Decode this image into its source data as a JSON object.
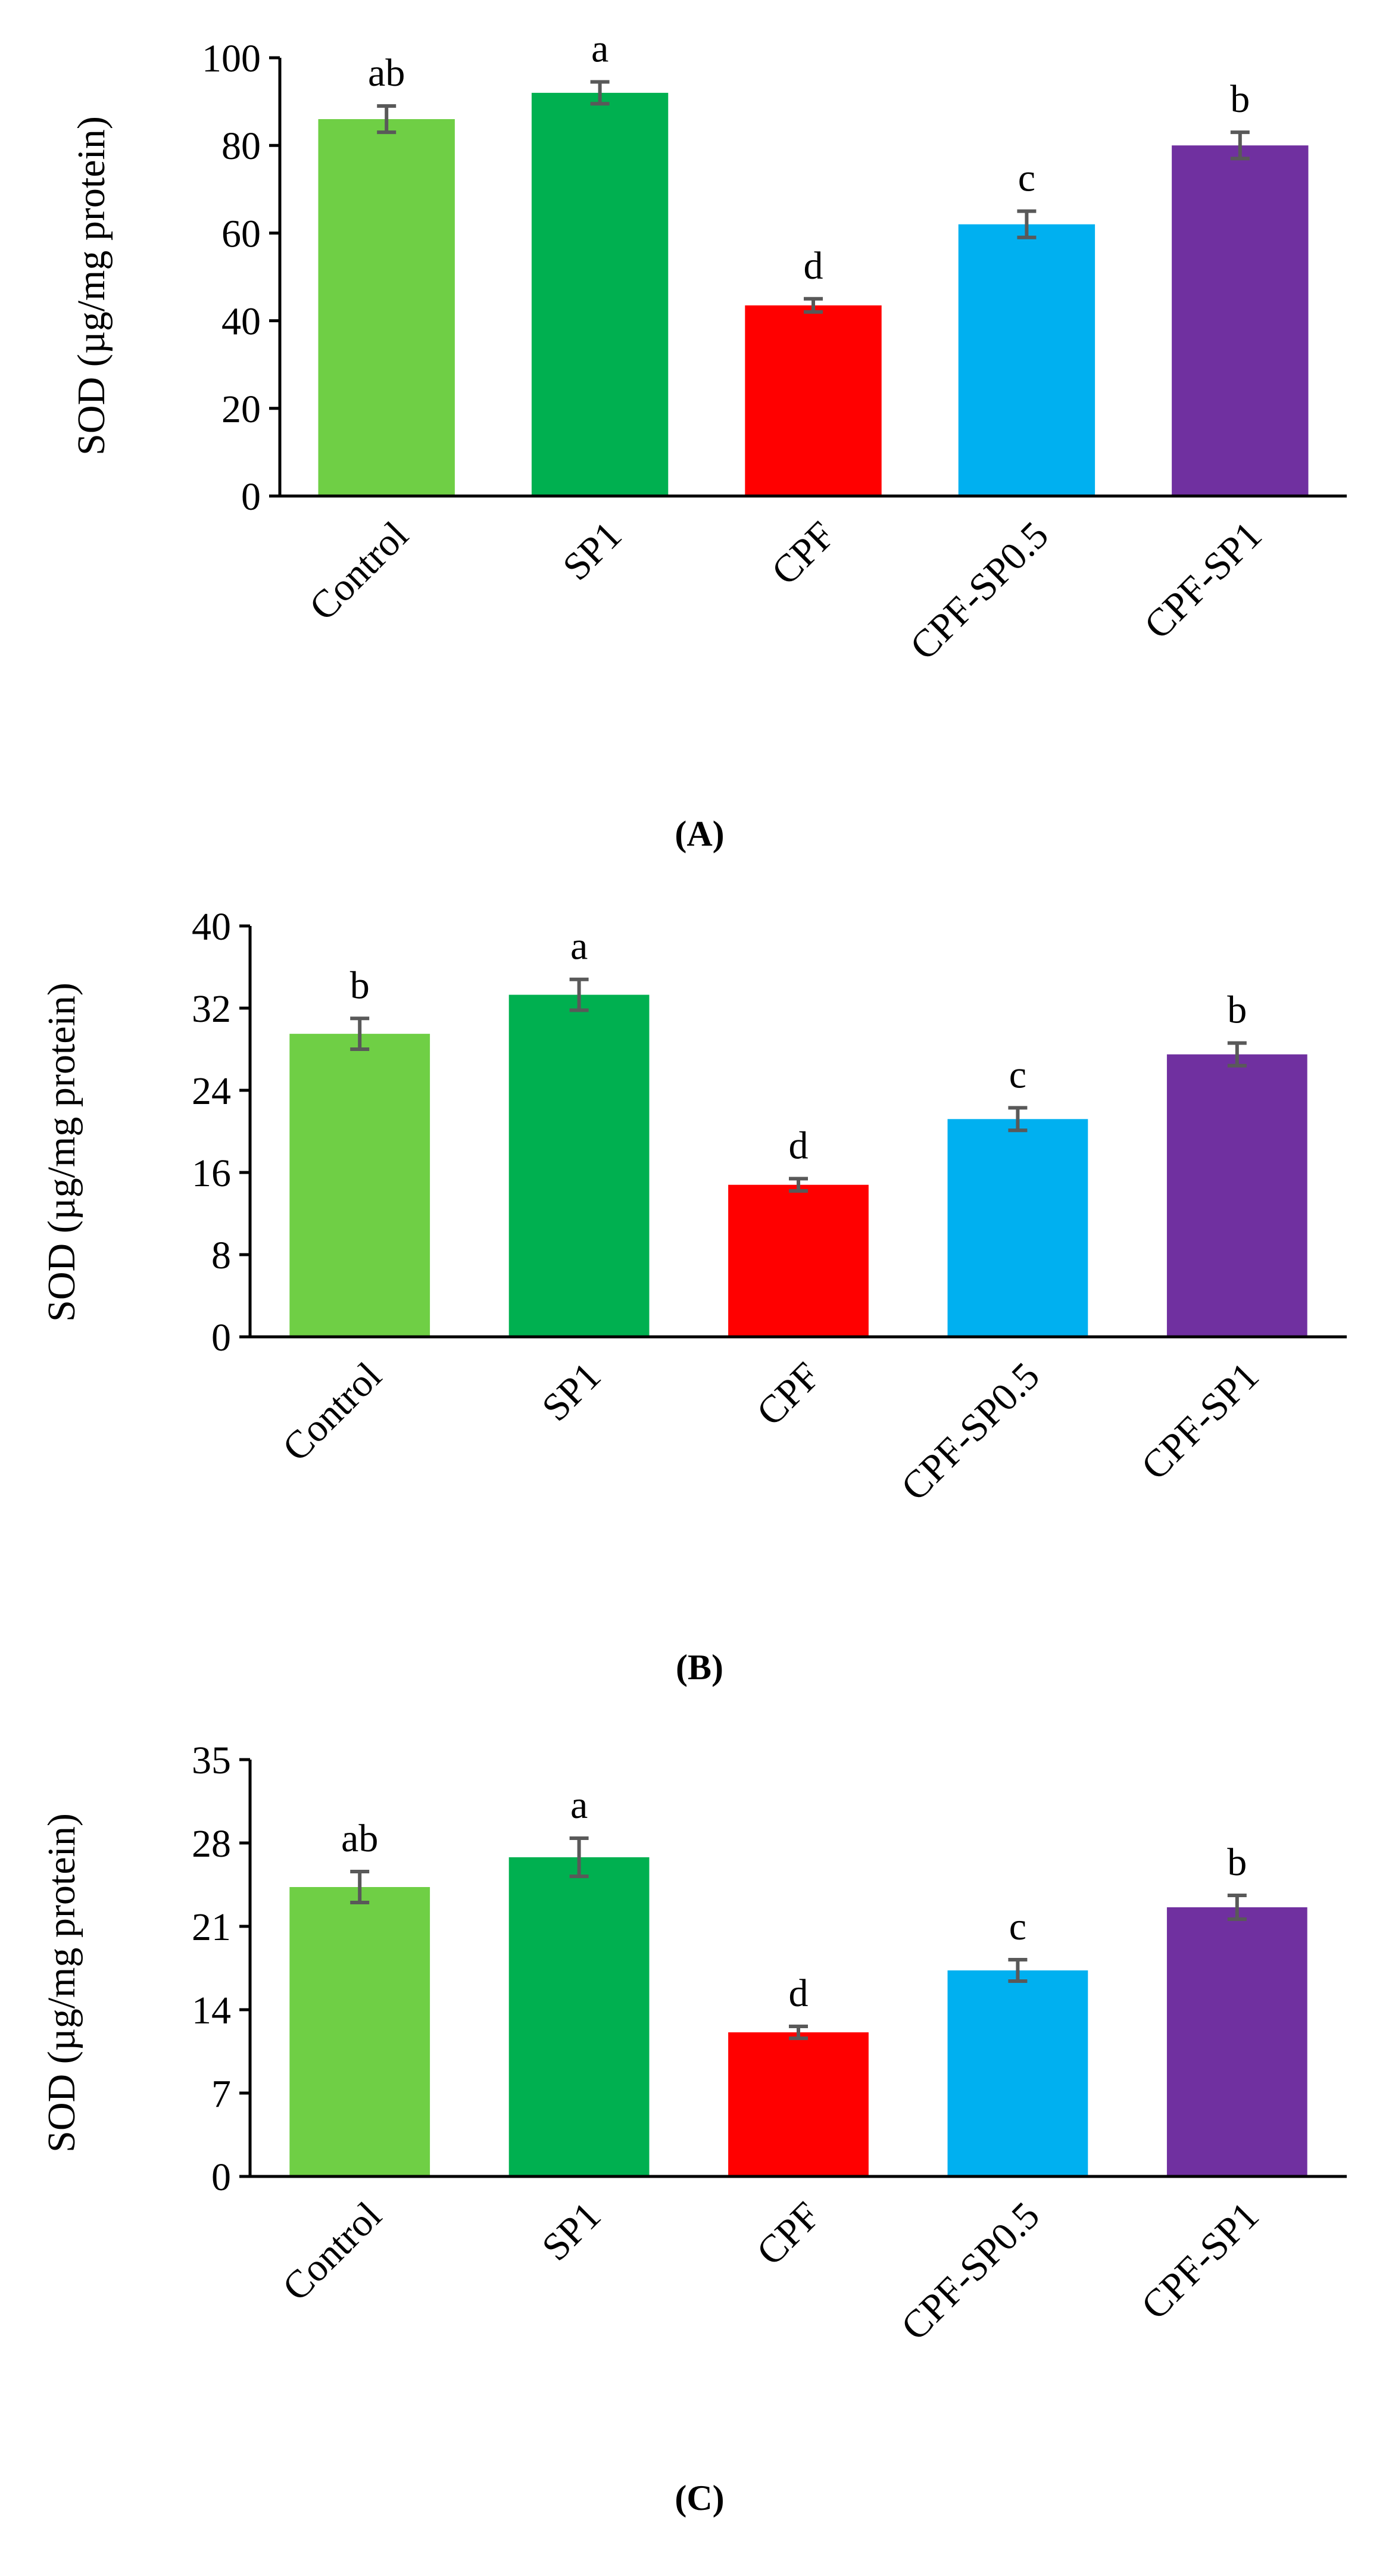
{
  "chart_data": [
    {
      "type": "bar",
      "title": "(A)",
      "ylabel": "SOD (µg/mg protein)",
      "categories": [
        "Control",
        "SP1",
        "CPF",
        "CPF-SP0.5",
        "CPF-SP1"
      ],
      "values": [
        86,
        92,
        43.5,
        62,
        80
      ],
      "errors": [
        3,
        2.5,
        1.5,
        3,
        3
      ],
      "letters": [
        "ab",
        "a",
        "d",
        "c",
        "b"
      ],
      "colors": [
        "#6fcf45",
        "#00b050",
        "#ff0000",
        "#00b0f0",
        "#7030a0"
      ],
      "ylim": [
        0,
        100
      ],
      "yticks": [
        0,
        20,
        40,
        60,
        80,
        100
      ]
    },
    {
      "type": "bar",
      "title": "(B)",
      "ylabel": "SOD (µg/mg protein)",
      "categories": [
        "Control",
        "SP1",
        "CPF",
        "CPF-SP0.5",
        "CPF-SP1"
      ],
      "values": [
        29.5,
        33.3,
        14.8,
        21.2,
        27.5
      ],
      "errors": [
        1.5,
        1.5,
        0.6,
        1.1,
        1.1
      ],
      "letters": [
        "b",
        "a",
        "d",
        "c",
        "b"
      ],
      "colors": [
        "#6fcf45",
        "#00b050",
        "#ff0000",
        "#00b0f0",
        "#7030a0"
      ],
      "ylim": [
        0,
        40
      ],
      "yticks": [
        0,
        8,
        16,
        24,
        32,
        40
      ]
    },
    {
      "type": "bar",
      "title": "(C)",
      "ylabel": "SOD (µg/mg protein)",
      "categories": [
        "Control",
        "SP1",
        "CPF",
        "CPF-SP0.5",
        "CPF-SP1"
      ],
      "values": [
        24.3,
        26.8,
        12.1,
        17.3,
        22.6
      ],
      "errors": [
        1.3,
        1.6,
        0.5,
        0.9,
        1.0
      ],
      "letters": [
        "ab",
        "a",
        "d",
        "c",
        "b"
      ],
      "colors": [
        "#6fcf45",
        "#00b050",
        "#ff0000",
        "#00b0f0",
        "#7030a0"
      ],
      "ylim": [
        0,
        35
      ],
      "yticks": [
        0,
        7,
        14,
        21,
        28,
        35
      ]
    }
  ]
}
